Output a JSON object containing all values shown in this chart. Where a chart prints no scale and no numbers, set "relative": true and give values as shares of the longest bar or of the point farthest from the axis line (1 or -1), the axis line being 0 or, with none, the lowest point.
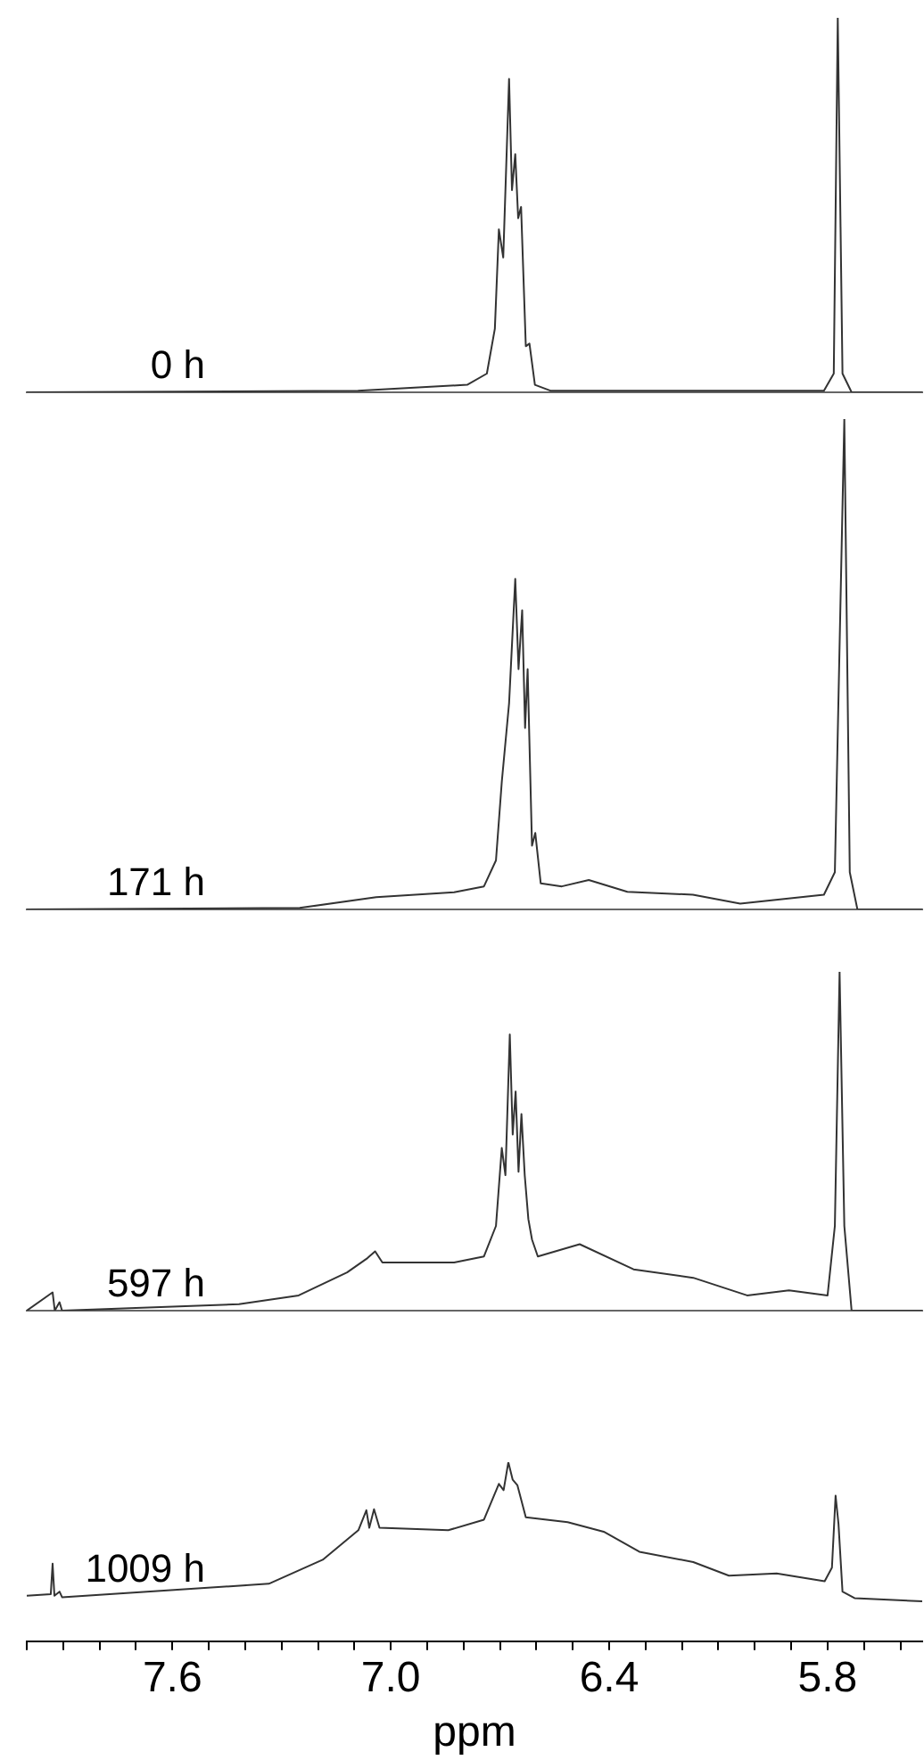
{
  "chart_data": [
    {
      "type": "line",
      "relative": true,
      "xlim": [
        8.0,
        5.54
      ],
      "tick_labels": false,
      "x": [
        8.0,
        7.09,
        6.79,
        6.736,
        6.714,
        6.703,
        6.691,
        6.675,
        6.667,
        6.658,
        6.65,
        6.642,
        6.629,
        6.619,
        6.604,
        6.56,
        5.81,
        5.783,
        5.772,
        5.759,
        5.734,
        5.54
      ],
      "series": [
        {
          "name": "0 h",
          "color": "#333333",
          "values": [
            0,
            0.004,
            0.02,
            0.05,
            0.17,
            0.435,
            0.36,
            0.837,
            0.54,
            0.636,
            0.465,
            0.495,
            0.123,
            0.13,
            0.02,
            0.004,
            0.004,
            0.05,
            1,
            0.05,
            0,
            0
          ]
        }
      ]
    },
    {
      "type": "line",
      "relative": true,
      "xlim": [
        8.0,
        5.54
      ],
      "tick_labels": false,
      "x": [
        8.0,
        7.25,
        7.04,
        6.826,
        6.744,
        6.711,
        6.695,
        6.675,
        6.658,
        6.649,
        6.639,
        6.631,
        6.624,
        6.612,
        6.603,
        6.588,
        6.53,
        6.456,
        6.35,
        6.17,
        6.04,
        5.81,
        5.78,
        5.754,
        5.739,
        5.718,
        5.54
      ],
      "series": [
        {
          "name": "171 h",
          "color": "#333333",
          "values": [
            0,
            0.003,
            0.025,
            0.035,
            0.047,
            0.1,
            0.26,
            0.42,
            0.674,
            0.49,
            0.61,
            0.37,
            0.49,
            0.13,
            0.156,
            0.053,
            0.047,
            0.06,
            0.036,
            0.03,
            0.012,
            0.03,
            0.076,
            1,
            0.076,
            0,
            0
          ]
        }
      ]
    },
    {
      "type": "line",
      "relative": true,
      "xlim": [
        8.0,
        5.54
      ],
      "tick_labels": false,
      "x": [
        8.0,
        7.929,
        7.923,
        7.91,
        7.903,
        7.417,
        7.253,
        7.12,
        7.064,
        7.043,
        7.023,
        6.826,
        6.744,
        6.711,
        6.695,
        6.685,
        6.673,
        6.665,
        6.657,
        6.649,
        6.641,
        6.632,
        6.622,
        6.612,
        6.596,
        6.481,
        6.333,
        6.169,
        6.021,
        5.906,
        5.8,
        5.78,
        5.767,
        5.754,
        5.734,
        5.54
      ],
      "series": [
        {
          "name": "597 h",
          "color": "#333333",
          "values": [
            0,
            0.054,
            0,
            0.025,
            0,
            0.019,
            0.045,
            0.113,
            0.155,
            0.175,
            0.142,
            0.142,
            0.16,
            0.25,
            0.48,
            0.4,
            0.815,
            0.52,
            0.647,
            0.41,
            0.58,
            0.4,
            0.27,
            0.21,
            0.16,
            0.196,
            0.122,
            0.097,
            0.045,
            0.06,
            0.045,
            0.25,
            1,
            0.25,
            0,
            0
          ]
        }
      ]
    },
    {
      "type": "line",
      "relative": true,
      "xlim": [
        8.0,
        5.54
      ],
      "xlabel": "ppm",
      "tick_labels": "x",
      "xticks": [
        {
          "value": 8.0,
          "label": null
        },
        {
          "value": 7.9,
          "label": null
        },
        {
          "value": 7.8,
          "label": null
        },
        {
          "value": 7.7,
          "label": null
        },
        {
          "value": 7.6,
          "label": "7.6"
        },
        {
          "value": 7.5,
          "label": null
        },
        {
          "value": 7.4,
          "label": null
        },
        {
          "value": 7.3,
          "label": null
        },
        {
          "value": 7.2,
          "label": null
        },
        {
          "value": 7.1,
          "label": null
        },
        {
          "value": 7.0,
          "label": "7.0"
        },
        {
          "value": 6.9,
          "label": null
        },
        {
          "value": 6.8,
          "label": null
        },
        {
          "value": 6.7,
          "label": null
        },
        {
          "value": 6.6,
          "label": null
        },
        {
          "value": 6.5,
          "label": null
        },
        {
          "value": 6.4,
          "label": "6.4"
        },
        {
          "value": 6.3,
          "label": null
        },
        {
          "value": 6.2,
          "label": null
        },
        {
          "value": 6.1,
          "label": null
        },
        {
          "value": 6.0,
          "label": null
        },
        {
          "value": 5.9,
          "label": null
        },
        {
          "value": 5.8,
          "label": "5.8"
        },
        {
          "value": 5.7,
          "label": null
        },
        {
          "value": 5.6,
          "label": null
        }
      ],
      "x": [
        8.0,
        7.934,
        7.929,
        7.924,
        7.91,
        7.903,
        7.335,
        7.187,
        7.089,
        7.067,
        7.059,
        7.046,
        7.031,
        6.842,
        6.744,
        6.703,
        6.69,
        6.677,
        6.665,
        6.652,
        6.629,
        6.514,
        6.415,
        6.317,
        6.169,
        6.071,
        5.94,
        5.808,
        5.788,
        5.778,
        5.77,
        5.759,
        5.726,
        5.54
      ],
      "series": [
        {
          "name": "1009 h",
          "color": "#333333",
          "values": [
            0.254,
            0.263,
            0.433,
            0.254,
            0.277,
            0.246,
            0.321,
            0.455,
            0.62,
            0.732,
            0.634,
            0.737,
            0.634,
            0.62,
            0.679,
            0.879,
            0.844,
            1,
            0.902,
            0.871,
            0.692,
            0.665,
            0.612,
            0.5,
            0.442,
            0.366,
            0.379,
            0.335,
            0.411,
            0.813,
            0.656,
            0.277,
            0.241,
            0.223
          ]
        }
      ]
    }
  ]
}
